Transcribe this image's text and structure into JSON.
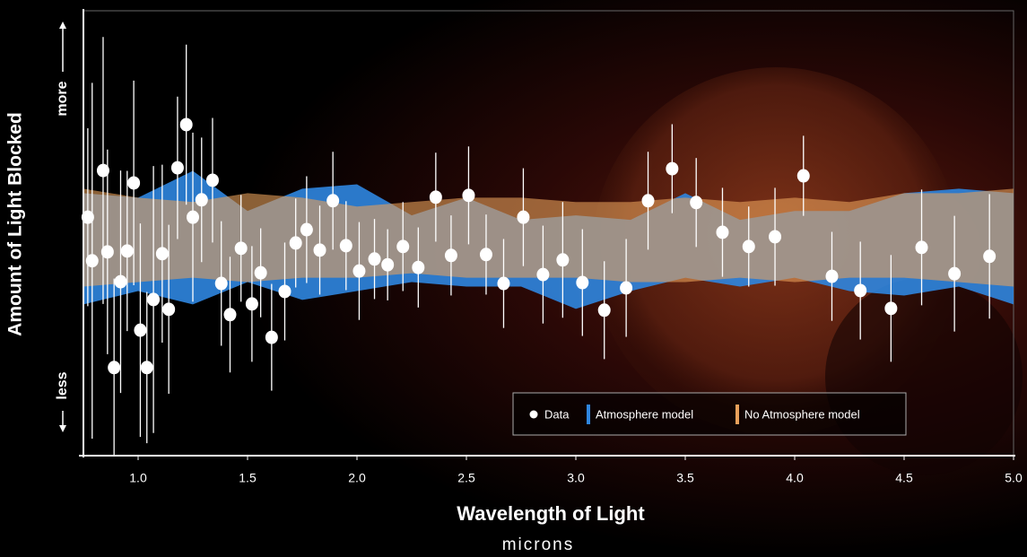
{
  "chart_data": {
    "type": "scatter",
    "x_label": "Wavelength of Light",
    "x_unit": "microns",
    "y_label": "Amount of Light Blocked",
    "y_more": "more",
    "y_less": "less",
    "xlim": [
      0.75,
      5.0
    ],
    "xticks": [
      {
        "value": 1,
        "label": "1.0"
      },
      1.5,
      {
        "value": 2,
        "label": "2.0"
      },
      2.5,
      {
        "value": 3,
        "label": "3.0"
      },
      3.5,
      {
        "value": 4,
        "label": "4.0"
      },
      4.5,
      {
        "value": 5,
        "label": "5.0"
      }
    ],
    "ylim": [
      0,
      100
    ],
    "legend": "lower right",
    "series": [
      {
        "name": "Data",
        "color": "#ffffff",
        "x": [
          0.77,
          0.79,
          0.84,
          0.86,
          0.89,
          0.92,
          0.95,
          0.98,
          1.01,
          1.04,
          1.07,
          1.11,
          1.14,
          1.18,
          1.22,
          1.25,
          1.29,
          1.34,
          1.38,
          1.42,
          1.47,
          1.52,
          1.56,
          1.61,
          1.67,
          1.72,
          1.77,
          1.83,
          1.89,
          1.95,
          2.01,
          2.08,
          2.14,
          2.21,
          2.28,
          2.36,
          2.43,
          2.51,
          2.59,
          2.67,
          2.76,
          2.85,
          2.94,
          3.03,
          3.13,
          3.23,
          3.33,
          3.44,
          3.55,
          3.67,
          3.79,
          3.91,
          4.04,
          4.17,
          4.3,
          4.44,
          4.58,
          4.73,
          4.89
        ],
        "values": [
          53.6,
          43.8,
          64.1,
          45.8,
          19.8,
          39.1,
          46.0,
          61.3,
          28.2,
          19.8,
          35.1,
          45.4,
          32.9,
          64.7,
          74.4,
          53.6,
          57.5,
          61.9,
          38.7,
          31.7,
          46.6,
          34.1,
          41.1,
          26.6,
          36.9,
          47.8,
          50.8,
          46.2,
          57.3,
          47.2,
          41.5,
          44.2,
          42.9,
          47.0,
          42.3,
          58.1,
          45.0,
          58.5,
          45.2,
          38.7,
          53.6,
          40.7,
          44.0,
          38.9,
          32.7,
          37.7,
          57.3,
          64.5,
          56.9,
          50.2,
          47.0,
          49.2,
          62.9,
          40.3,
          37.1,
          33.1,
          46.8,
          40.9,
          44.8
        ],
        "errors": [
          20,
          40,
          30,
          23,
          20,
          25,
          18,
          23,
          24,
          17,
          30,
          20,
          19,
          16,
          18,
          19,
          14,
          14,
          14,
          13,
          12,
          13,
          10,
          12,
          11,
          10,
          12,
          10,
          11,
          10,
          11,
          9,
          8,
          10,
          9,
          10,
          9,
          11,
          9,
          10,
          11,
          11,
          13,
          12,
          11,
          11,
          11,
          10,
          10,
          10,
          9,
          11,
          9,
          10,
          11,
          12,
          13,
          13,
          14
        ]
      }
    ],
    "models": [
      {
        "name": "Atmosphere model",
        "color": "#2f86e0",
        "x": [
          0.75,
          1.0,
          1.25,
          1.5,
          1.75,
          2.0,
          2.25,
          2.5,
          2.75,
          3.0,
          3.25,
          3.5,
          3.75,
          4.0,
          4.25,
          4.5,
          4.75,
          5.0
        ],
        "upper": [
          59,
          58,
          64,
          55,
          60,
          61,
          54,
          58,
          53,
          54,
          53,
          59,
          53,
          55,
          55,
          59,
          60,
          59
        ],
        "lower": [
          34,
          37,
          34,
          39,
          35,
          37,
          39,
          38,
          38,
          33,
          37,
          40,
          38,
          40,
          37,
          36,
          38,
          34
        ]
      },
      {
        "name": "No Atmosphere model",
        "color": "#e8a05a",
        "x": [
          0.75,
          1.0,
          1.25,
          1.5,
          1.75,
          2.0,
          2.25,
          2.5,
          2.75,
          3.0,
          3.25,
          3.5,
          3.75,
          4.0,
          4.25,
          4.5,
          4.75,
          5.0
        ],
        "upper": [
          60,
          58,
          57,
          59,
          58,
          56,
          57,
          58,
          58,
          57,
          57,
          58,
          57,
          58,
          57,
          59,
          59,
          60
        ],
        "lower": [
          38,
          39,
          40,
          39,
          40,
          40,
          41,
          40,
          40,
          40,
          39,
          39,
          40,
          39,
          40,
          40,
          39,
          38
        ]
      }
    ]
  }
}
